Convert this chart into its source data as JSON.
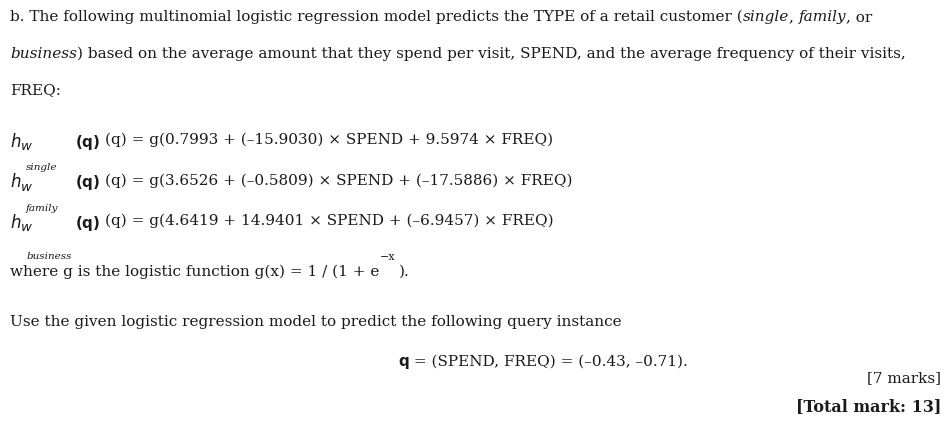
{
  "bg_color": "#ffffff",
  "text_color": "#1a1a1a",
  "fig_width": 9.74,
  "fig_height": 4.17,
  "dpi": 100,
  "fs": 11.0,
  "serif": "DejaVu Serif",
  "line1a": "b. The following multinomial logistic regression model predicts the TYPE of a retail customer (",
  "line1b_italic": "single",
  "line1c": ", ",
  "line1d_italic": "family",
  "line1e": ", or",
  "line2a_italic": "business",
  "line2b": ") based on the average amount that they spend per visit, SPEND, and the average frequency of their visits,",
  "line3": "FREQ:",
  "eq1_rhs": "(q) = g(0.7993 + (–15.9030) × SPEND + 9.5974 × FREQ)",
  "eq2_rhs": "(q) = g(3.6526 + (–0.5809) × SPEND + (–17.5886) × FREQ)",
  "eq3_rhs": "(q) = g(4.6419 + 14.9401 × SPEND + (–6.9457) × FREQ)",
  "logistic_pre": "where g is the logistic function g(x) = 1 / (1 + e",
  "logistic_sup": "−x",
  "logistic_post": ").",
  "query_label": "Use the given logistic regression model to predict the following query instance",
  "query_val": " = (SPEND, FREQ) = (–0.43, –0.71).",
  "marks": "[7 marks]",
  "total": "[Total mark: 13]"
}
